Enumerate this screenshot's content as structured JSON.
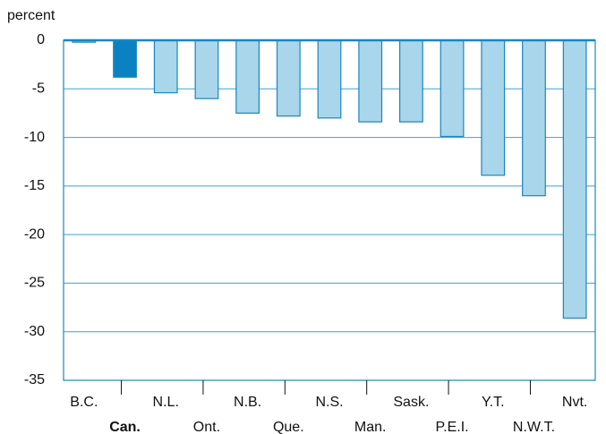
{
  "chart_data": {
    "type": "bar",
    "y_label": "percent",
    "categories": [
      "B.C.",
      "Can.",
      "N.L.",
      "Ont.",
      "N.B.",
      "Que.",
      "N.S.",
      "Man.",
      "Sask.",
      "P.E.I.",
      "Y.T.",
      "N.W.T.",
      "Nvt."
    ],
    "values": [
      -0.2,
      -3.8,
      -5.4,
      -6.0,
      -7.5,
      -7.8,
      -8.0,
      -8.4,
      -8.4,
      -9.9,
      -13.9,
      -16.0,
      -28.6
    ],
    "color": "#a9d6ea",
    "highlight": "Can.",
    "highlight_color": "#0a82c1",
    "ylim": [
      -35,
      0
    ],
    "yticks": [
      -35,
      -30,
      -25,
      -20,
      -15,
      -10,
      -5,
      0
    ],
    "grid": true
  }
}
